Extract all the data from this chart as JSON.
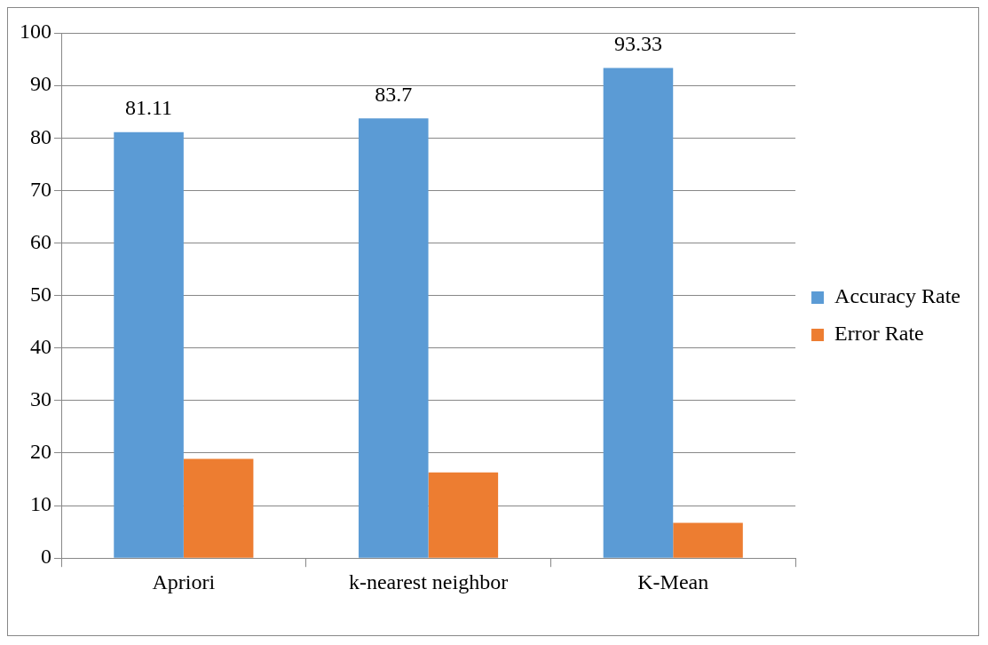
{
  "chart_data": {
    "type": "bar",
    "categories": [
      "Apriori",
      "k-nearest neighbor",
      "K-Mean"
    ],
    "series": [
      {
        "name": "Accuracy Rate",
        "color": "#5b9bd5",
        "values": [
          81.11,
          83.7,
          93.33
        ],
        "value_labels": [
          "81.11",
          "83.7",
          "93.33"
        ]
      },
      {
        "name": "Error Rate",
        "color": "#ed7d31",
        "values": [
          18.9,
          16.3,
          6.7
        ]
      }
    ],
    "ylim": [
      0,
      100
    ],
    "yticks": [
      0,
      10,
      20,
      30,
      40,
      50,
      60,
      70,
      80,
      90,
      100
    ],
    "grid": "y",
    "legend": "right"
  }
}
